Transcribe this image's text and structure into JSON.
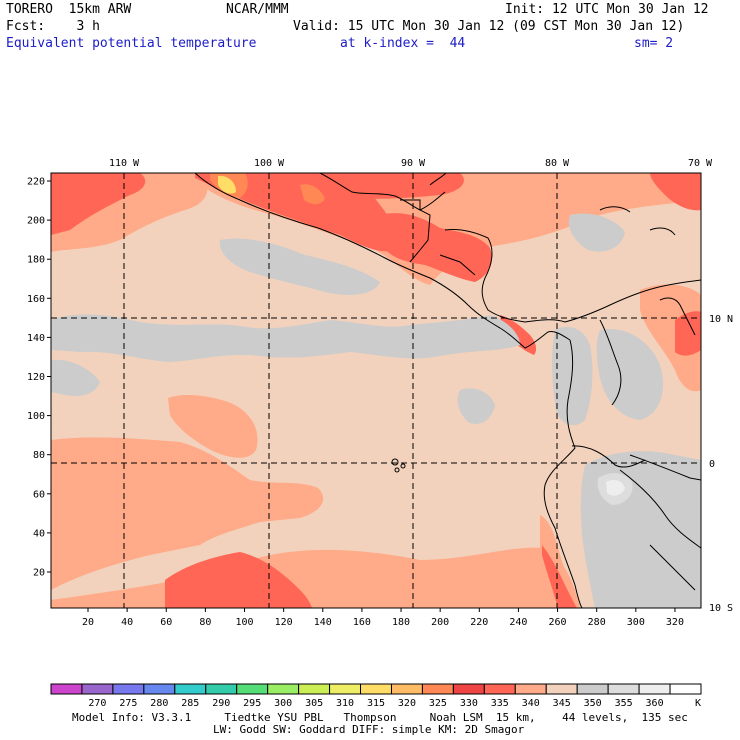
{
  "header": {
    "model": "TORERO  15km ARW",
    "center": "NCAR/MMM",
    "init": "Init: 12 UTC Mon 30 Jan 12",
    "fcst": "Fcst:    3 h",
    "valid": "Valid: 15 UTC Mon 30 Jan 12 (09 CST Mon 30 Jan 12)",
    "field": "Equivalent potential temperature",
    "level": "at k-index =  44",
    "smooth": "sm= 2"
  },
  "map": {
    "lon_labels": [
      "110 W",
      "100 W",
      "90 W",
      "80 W",
      "70 W"
    ],
    "lat_labels": [
      "10 N",
      "0",
      "10 S"
    ],
    "y_ticks": [
      "220",
      "200",
      "180",
      "160",
      "140",
      "120",
      "100",
      "80",
      "60",
      "40",
      "20"
    ],
    "x_ticks": [
      "20",
      "40",
      "60",
      "80",
      "100",
      "120",
      "140",
      "160",
      "180",
      "200",
      "220",
      "240",
      "260",
      "280",
      "300",
      "320"
    ]
  },
  "colorbar": {
    "labels": [
      "270",
      "275",
      "280",
      "285",
      "290",
      "295",
      "300",
      "305",
      "310",
      "315",
      "320",
      "325",
      "330",
      "335",
      "340",
      "345",
      "350",
      "355",
      "360"
    ],
    "unit": "K",
    "colors": [
      "#cc44cc",
      "#9966cc",
      "#7777ee",
      "#6688ee",
      "#33cccc",
      "#33ccaa",
      "#55dd77",
      "#99ee66",
      "#ccee55",
      "#eeee66",
      "#ffdd66",
      "#ffbb66",
      "#ff8855",
      "#ee4444",
      "#ff6655",
      "#ffaa88",
      "#f2d2bc",
      "#cccccc",
      "#dddddd",
      "#eeeeee",
      "#ffffff"
    ]
  },
  "footer": {
    "line1": "Model Info: V3.3.1     Tiedtke YSU PBL   Thompson     Noah LSM  15 km,    44 levels,  135 sec",
    "line2": "LW: Godd SW: Goddard DIFF: simple KM: 2D Smagor"
  }
}
